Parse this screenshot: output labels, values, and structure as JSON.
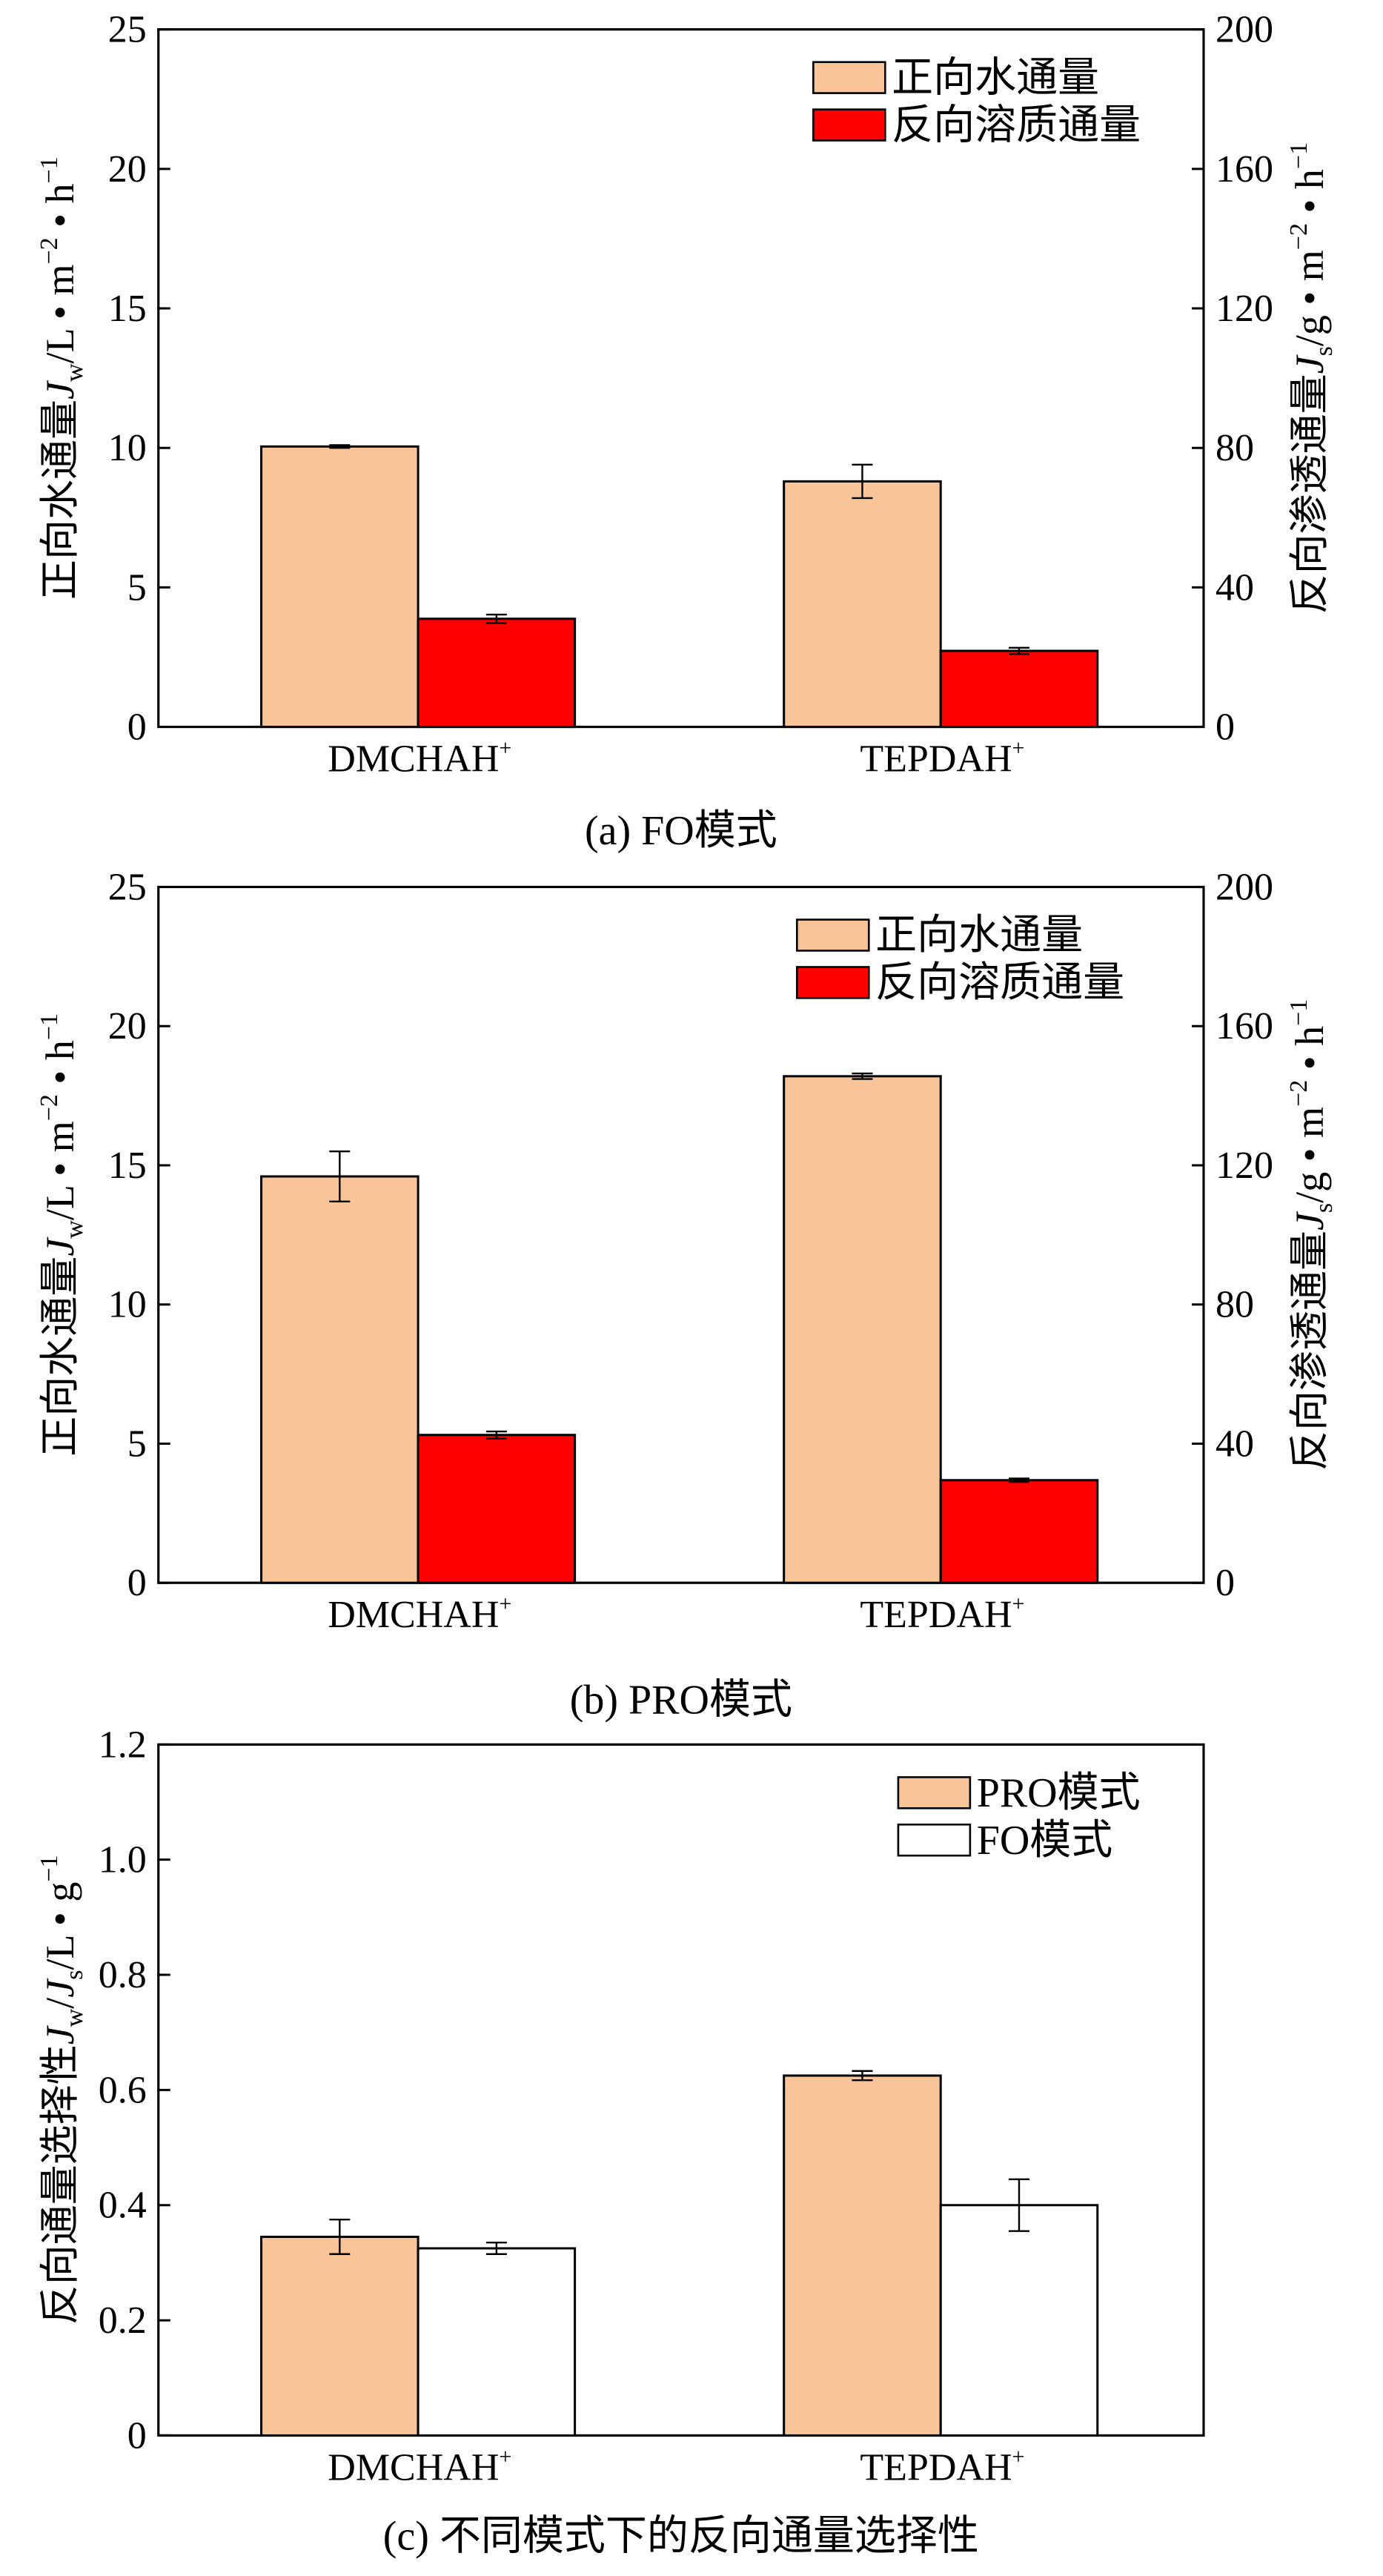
{
  "chart_data": [
    {
      "type": "bar",
      "panel_label": "(a) FO模式",
      "categories": [
        "DMCHAH",
        "TEPDAH"
      ],
      "category_superscript": "+",
      "ylabel_left": {
        "text": "正向水通量",
        "var": "J",
        "sub": "w",
        "unit": "/L • m",
        "exp1": "−2",
        "mid": " • h",
        "exp2": "−1"
      },
      "ylabel_right": {
        "text": "反向渗透通量",
        "var": "J",
        "sub": "s",
        "unit": "/g • m",
        "exp1": "−2",
        "mid": " • h",
        "exp2": "−1"
      },
      "ylim_left": [
        0,
        25
      ],
      "yticks_left": [
        0,
        5,
        10,
        15,
        20,
        25
      ],
      "ylim_right": [
        0,
        200
      ],
      "yticks_right": [
        0,
        40,
        80,
        120,
        160,
        200
      ],
      "legend_position": "top-right",
      "series": [
        {
          "name": "正向水通量",
          "axis": "left",
          "color": "#F9C598",
          "values": [
            10.05,
            8.8
          ],
          "errors": [
            0.05,
            0.6
          ]
        },
        {
          "name": "反向溶质通量",
          "axis": "right",
          "color": "#FF0000",
          "values": [
            31.0,
            21.8
          ],
          "errors": [
            1.2,
            0.9
          ]
        }
      ]
    },
    {
      "type": "bar",
      "panel_label": "(b) PRO模式",
      "categories": [
        "DMCHAH",
        "TEPDAH"
      ],
      "category_superscript": "+",
      "ylabel_left": {
        "text": "正向水通量",
        "var": "J",
        "sub": "w",
        "unit": "/L • m",
        "exp1": "−2",
        "mid": " • h",
        "exp2": "−1"
      },
      "ylabel_right": {
        "text": "反向渗透通量",
        "var": "J",
        "sub": "s",
        "unit": "/g • m",
        "exp1": "−2",
        "mid": " • h",
        "exp2": "−1"
      },
      "ylim_left": [
        0,
        25
      ],
      "yticks_left": [
        0,
        5,
        10,
        15,
        20,
        25
      ],
      "ylim_right": [
        0,
        200
      ],
      "yticks_right": [
        0,
        40,
        80,
        120,
        160,
        200
      ],
      "legend_position": "top-right",
      "series": [
        {
          "name": "正向水通量",
          "axis": "left",
          "color": "#F9C598",
          "values": [
            14.6,
            18.2
          ],
          "errors": [
            0.9,
            0.1
          ]
        },
        {
          "name": "反向溶质通量",
          "axis": "right",
          "color": "#FF0000",
          "values": [
            42.5,
            29.5
          ],
          "errors": [
            1.0,
            0.5
          ]
        }
      ]
    },
    {
      "type": "bar",
      "panel_label": "(c) 不同模式下的反向通量选择性",
      "categories": [
        "DMCHAH",
        "TEPDAH"
      ],
      "category_superscript": "+",
      "ylabel_left": {
        "text": "反向通量选择性",
        "var": "J",
        "sub": "w",
        "unit": "/",
        "var2": "J",
        "sub2": "s",
        "unit2": "/L • g",
        "exp1": "−1"
      },
      "ylim_left": [
        0,
        1.2
      ],
      "yticks_left": [
        "0",
        "0.2",
        "0.4",
        "0.6",
        "0.8",
        "1.0",
        "1.2"
      ],
      "legend_position": "top-right",
      "series": [
        {
          "name": "PRO模式",
          "axis": "left",
          "color": "#F9C598",
          "values": [
            0.345,
            0.625
          ],
          "errors": [
            0.03,
            0.008
          ]
        },
        {
          "name": "FO模式",
          "axis": "left",
          "color": "#FFFFFF",
          "values": [
            0.325,
            0.4
          ],
          "errors": [
            0.01,
            0.045
          ]
        }
      ]
    }
  ]
}
